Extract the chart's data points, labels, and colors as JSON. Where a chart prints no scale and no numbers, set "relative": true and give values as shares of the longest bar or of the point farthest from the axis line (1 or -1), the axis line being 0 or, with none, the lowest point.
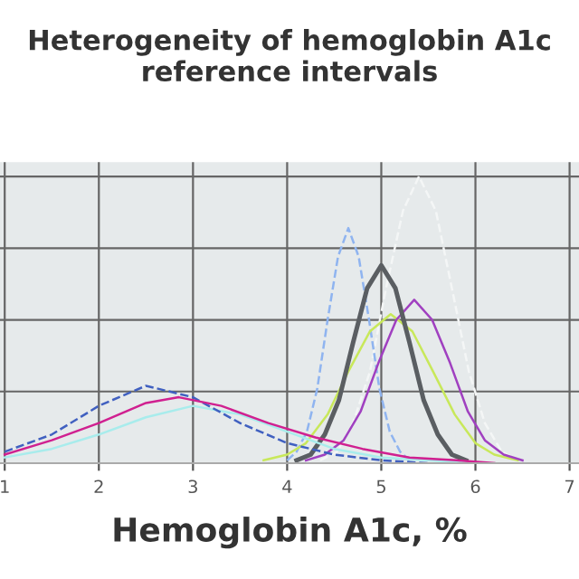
{
  "chart_data": {
    "type": "line",
    "title": "Heterogeneity of hemoglobin A1c\nreference intervals",
    "xlabel": "Hemoglobin A1c, %",
    "relative": true,
    "xlim": [
      0.95,
      7.1
    ],
    "xticks": [
      1,
      2,
      3,
      4,
      5,
      6,
      7
    ],
    "grid": true,
    "tick_labels": "x",
    "marker": "none",
    "series": [
      {
        "color": "#f4f6f6",
        "line_style": "dashed",
        "x": [
          4.35,
          4.53,
          4.7,
          4.88,
          5.05,
          5.23,
          5.4,
          5.58,
          5.75,
          5.93,
          6.1,
          6.28,
          6.45
        ],
        "values": [
          0.01,
          0.04,
          0.14,
          0.32,
          0.61,
          0.88,
          1.0,
          0.88,
          0.61,
          0.32,
          0.14,
          0.04,
          0.01
        ]
      },
      {
        "color": "#8fb4f0",
        "line_style": "dashed",
        "x": [
          4.0,
          4.1,
          4.21,
          4.32,
          4.43,
          4.54,
          4.65,
          4.76,
          4.87,
          4.98,
          5.09,
          5.2,
          5.3
        ],
        "values": [
          0.01,
          0.04,
          0.11,
          0.26,
          0.5,
          0.72,
          0.82,
          0.72,
          0.5,
          0.26,
          0.11,
          0.04,
          0.01
        ]
      },
      {
        "color": "#c8e85a",
        "line_style": "solid",
        "x": [
          3.75,
          4.0,
          4.2,
          4.43,
          4.65,
          4.88,
          5.1,
          5.33,
          5.55,
          5.78,
          6.0,
          6.2,
          6.45
        ],
        "values": [
          0.01,
          0.03,
          0.07,
          0.17,
          0.32,
          0.46,
          0.52,
          0.46,
          0.32,
          0.17,
          0.07,
          0.03,
          0.01
        ]
      },
      {
        "color": "#a040c0",
        "line_style": "solid",
        "x": [
          4.2,
          4.4,
          4.6,
          4.78,
          4.97,
          5.16,
          5.35,
          5.54,
          5.73,
          5.92,
          6.1,
          6.3,
          6.5
        ],
        "values": [
          0.01,
          0.03,
          0.08,
          0.18,
          0.35,
          0.5,
          0.57,
          0.5,
          0.35,
          0.18,
          0.08,
          0.03,
          0.01
        ]
      },
      {
        "color": "#5a5e62",
        "line_style": "solid",
        "x": [
          4.1,
          4.25,
          4.4,
          4.55,
          4.7,
          4.85,
          5.0,
          5.15,
          5.3,
          5.45,
          5.6,
          5.75,
          5.9
        ],
        "values": [
          0.01,
          0.03,
          0.1,
          0.22,
          0.42,
          0.61,
          0.69,
          0.61,
          0.42,
          0.22,
          0.1,
          0.03,
          0.01
        ]
      },
      {
        "color": "#a8ecec",
        "line_style": "solid",
        "x": [
          1.0,
          1.5,
          2.0,
          2.5,
          3.0,
          3.5,
          4.0,
          4.5,
          5.0,
          5.5,
          6.0
        ],
        "values": [
          0.02,
          0.05,
          0.1,
          0.16,
          0.2,
          0.17,
          0.11,
          0.05,
          0.02,
          0.01,
          0.0
        ]
      },
      {
        "color": "#4060c0",
        "line_style": "dashed",
        "x": [
          1.0,
          1.5,
          2.0,
          2.5,
          3.0,
          3.5,
          4.0,
          4.5,
          5.0,
          5.5
        ],
        "values": [
          0.04,
          0.1,
          0.2,
          0.27,
          0.23,
          0.14,
          0.07,
          0.03,
          0.01,
          0.0
        ]
      },
      {
        "color": "#d02090",
        "line_style": "solid",
        "x": [
          1.0,
          1.5,
          2.0,
          2.5,
          2.85,
          3.3,
          3.8,
          4.3,
          4.8,
          5.3,
          5.8,
          6.2
        ],
        "values": [
          0.03,
          0.08,
          0.14,
          0.21,
          0.23,
          0.2,
          0.14,
          0.09,
          0.05,
          0.02,
          0.01,
          0.0
        ]
      }
    ]
  }
}
